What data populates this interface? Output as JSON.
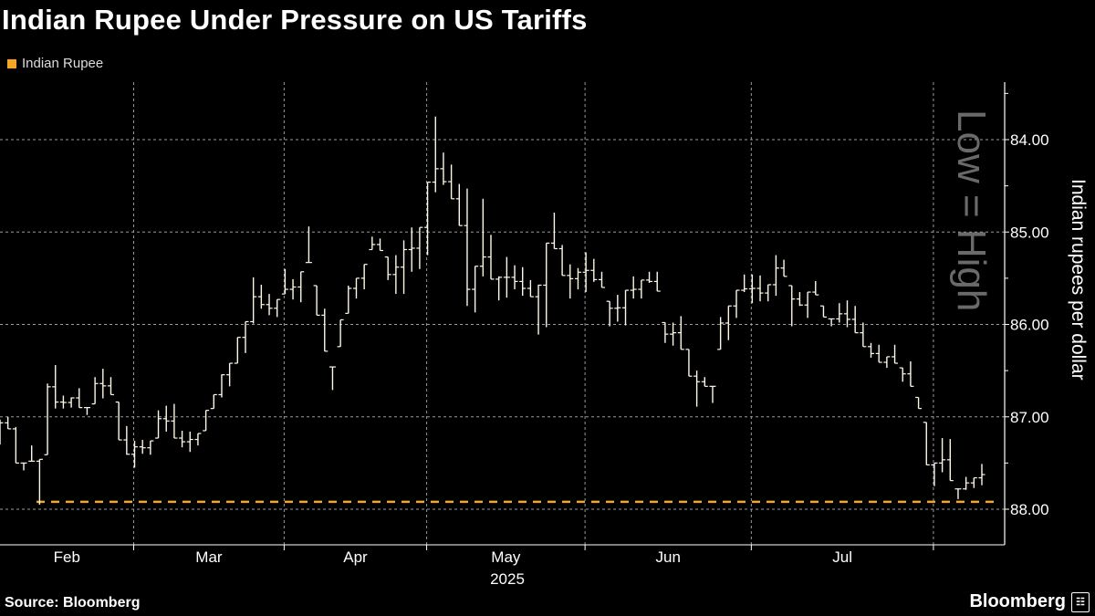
{
  "title": "Indian Rupee Under Pressure on US Tariffs",
  "source": "Source: Bloomberg",
  "brand": "Bloomberg",
  "colors": {
    "series": "#ffffff",
    "reference_line": "#f5a623",
    "legend": "#f5a623",
    "background": "#000000",
    "watermark": "#6a6a6a"
  },
  "chart_data": {
    "type": "ohlc-bar",
    "title": "Indian Rupee Under Pressure on US Tariffs",
    "legend": [
      {
        "name": "Indian Rupee",
        "color": "#f5a623"
      }
    ],
    "legend_position": "top-left",
    "ylabel": "Indian rupees per dollar",
    "y_note": "Low = High",
    "y_inverted": true,
    "ylim": [
      83.4,
      88.4
    ],
    "yticks": [
      "84.00",
      "85.00",
      "86.00",
      "87.00",
      "88.00"
    ],
    "ytick_values": [
      84,
      85,
      86,
      87,
      88
    ],
    "xlabel": "2025",
    "xticks": [
      "Feb",
      "Mar",
      "Apr",
      "May",
      "Jun",
      "Jul"
    ],
    "grid": true,
    "reference_line": 87.92,
    "bar_fields": [
      "date",
      "low",
      "high"
    ],
    "bars": [
      [
        "2025-02-06",
        87.03,
        87.3
      ],
      [
        "2025-02-07",
        87.0,
        87.13
      ],
      [
        "2025-02-10",
        87.11,
        87.5
      ],
      [
        "2025-02-11",
        87.5,
        87.58
      ],
      [
        "2025-02-12",
        87.31,
        87.48
      ],
      [
        "2025-02-13",
        87.46,
        87.95
      ],
      [
        "2025-02-14",
        86.64,
        87.41
      ],
      [
        "2025-02-17",
        86.44,
        86.91
      ],
      [
        "2025-02-18",
        86.77,
        86.91
      ],
      [
        "2025-02-19",
        86.79,
        86.9
      ],
      [
        "2025-02-20",
        86.69,
        86.9
      ],
      [
        "2025-02-21",
        86.9,
        86.98
      ],
      [
        "2025-02-24",
        86.57,
        86.86
      ],
      [
        "2025-02-25",
        86.48,
        86.8
      ],
      [
        "2025-02-26",
        86.57,
        86.76
      ],
      [
        "2025-02-27",
        86.84,
        87.25
      ],
      [
        "2025-02-28",
        87.1,
        87.41
      ],
      [
        "2025-03-03",
        87.26,
        87.55
      ],
      [
        "2025-03-04",
        87.25,
        87.4
      ],
      [
        "2025-03-05",
        87.26,
        87.41
      ],
      [
        "2025-03-06",
        86.93,
        87.23
      ],
      [
        "2025-03-07",
        86.88,
        87.16
      ],
      [
        "2025-03-10",
        86.86,
        87.23
      ],
      [
        "2025-03-11",
        87.15,
        87.33
      ],
      [
        "2025-03-12",
        87.16,
        87.38
      ],
      [
        "2025-03-13",
        87.18,
        87.31
      ],
      [
        "2025-03-17",
        86.93,
        87.15
      ],
      [
        "2025-03-18",
        86.76,
        86.91
      ],
      [
        "2025-03-19",
        86.54,
        86.79
      ],
      [
        "2025-03-20",
        86.42,
        86.67
      ],
      [
        "2025-03-21",
        86.14,
        86.42
      ],
      [
        "2025-03-24",
        85.97,
        86.31
      ],
      [
        "2025-03-25",
        85.49,
        85.99
      ],
      [
        "2025-03-26",
        85.57,
        85.83
      ],
      [
        "2025-03-27",
        85.67,
        85.9
      ],
      [
        "2025-03-28",
        85.73,
        85.92
      ],
      [
        "2025-04-02",
        85.4,
        85.67
      ],
      [
        "2025-04-03",
        85.51,
        85.73
      ],
      [
        "2025-04-04",
        85.43,
        85.76
      ],
      [
        "2025-04-07",
        84.94,
        85.33
      ],
      [
        "2025-04-08",
        85.58,
        85.9
      ],
      [
        "2025-04-09",
        85.83,
        86.29
      ],
      [
        "2025-04-11",
        86.46,
        86.71
      ],
      [
        "2025-04-15",
        85.95,
        86.24
      ],
      [
        "2025-04-16",
        85.58,
        85.88
      ],
      [
        "2025-04-17",
        85.5,
        85.72
      ],
      [
        "2025-04-21",
        85.35,
        85.62
      ],
      [
        "2025-04-22",
        85.05,
        85.19
      ],
      [
        "2025-04-23",
        85.07,
        85.2
      ],
      [
        "2025-04-24",
        85.27,
        85.52
      ],
      [
        "2025-04-25",
        85.25,
        85.67
      ],
      [
        "2025-04-28",
        85.09,
        85.67
      ],
      [
        "2025-04-29",
        84.95,
        85.43
      ],
      [
        "2025-04-30",
        84.95,
        85.4
      ],
      [
        "2025-05-02",
        84.46,
        85.25
      ],
      [
        "2025-05-05",
        83.75,
        84.57
      ],
      [
        "2025-05-06",
        84.14,
        84.49
      ],
      [
        "2025-05-07",
        84.27,
        84.64
      ],
      [
        "2025-05-08",
        84.48,
        84.93
      ],
      [
        "2025-05-09",
        84.53,
        85.8
      ],
      [
        "2025-05-13",
        85.37,
        85.87
      ],
      [
        "2025-05-14",
        84.64,
        85.48
      ],
      [
        "2025-05-15",
        85.03,
        85.51
      ],
      [
        "2025-05-16",
        85.48,
        85.74
      ],
      [
        "2025-05-19",
        85.27,
        85.71
      ],
      [
        "2025-05-20",
        85.36,
        85.62
      ],
      [
        "2025-05-21",
        85.38,
        85.69
      ],
      [
        "2025-05-22",
        85.52,
        85.7
      ],
      [
        "2025-05-23",
        85.57,
        86.11
      ],
      [
        "2025-05-26",
        85.12,
        86.03
      ],
      [
        "2025-05-27",
        84.79,
        85.18
      ],
      [
        "2025-05-28",
        85.14,
        85.47
      ],
      [
        "2025-05-29",
        85.35,
        85.72
      ],
      [
        "2025-05-30",
        85.39,
        85.62
      ],
      [
        "2025-06-02",
        85.22,
        85.65
      ],
      [
        "2025-06-03",
        85.29,
        85.54
      ],
      [
        "2025-06-04",
        85.43,
        85.6
      ],
      [
        "2025-06-05",
        85.75,
        86.02
      ],
      [
        "2025-06-06",
        85.68,
        85.97
      ],
      [
        "2025-06-09",
        85.63,
        86.01
      ],
      [
        "2025-06-10",
        85.48,
        85.72
      ],
      [
        "2025-06-11",
        85.52,
        85.72
      ],
      [
        "2025-06-12",
        85.43,
        85.55
      ],
      [
        "2025-06-13",
        85.43,
        85.64
      ],
      [
        "2025-06-16",
        85.98,
        86.2
      ],
      [
        "2025-06-17",
        85.98,
        86.23
      ],
      [
        "2025-06-18",
        85.91,
        86.27
      ],
      [
        "2025-06-19",
        86.27,
        86.56
      ],
      [
        "2025-06-20",
        86.5,
        86.89
      ],
      [
        "2025-06-23",
        86.57,
        86.67
      ],
      [
        "2025-06-24",
        86.67,
        86.85
      ],
      [
        "2025-06-25",
        85.92,
        86.27
      ],
      [
        "2025-06-26",
        85.8,
        86.17
      ],
      [
        "2025-06-27",
        85.63,
        85.93
      ],
      [
        "2025-06-30",
        85.46,
        85.65
      ],
      [
        "2025-07-01",
        85.46,
        85.77
      ],
      [
        "2025-07-02",
        85.47,
        85.75
      ],
      [
        "2025-07-03",
        85.57,
        85.75
      ],
      [
        "2025-07-04",
        85.25,
        85.69
      ],
      [
        "2025-07-07",
        85.3,
        85.48
      ],
      [
        "2025-07-08",
        85.58,
        86.02
      ],
      [
        "2025-07-09",
        85.65,
        85.8
      ],
      [
        "2025-07-10",
        85.65,
        85.93
      ],
      [
        "2025-07-11",
        85.53,
        85.68
      ],
      [
        "2025-07-14",
        85.8,
        85.92
      ],
      [
        "2025-07-15",
        85.94,
        86.02
      ],
      [
        "2025-07-16",
        85.77,
        85.98
      ],
      [
        "2025-07-17",
        85.74,
        86.03
      ],
      [
        "2025-07-18",
        85.8,
        86.09
      ],
      [
        "2025-07-21",
        85.98,
        86.24
      ],
      [
        "2025-07-22",
        86.2,
        86.36
      ],
      [
        "2025-07-23",
        86.22,
        86.41
      ],
      [
        "2025-07-24",
        86.35,
        86.47
      ],
      [
        "2025-07-25",
        86.22,
        86.42
      ],
      [
        "2025-07-28",
        86.47,
        86.62
      ],
      [
        "2025-07-29",
        86.4,
        86.67
      ],
      [
        "2025-07-30",
        86.79,
        86.91
      ],
      [
        "2025-07-31",
        87.06,
        87.52
      ],
      [
        "2025-08-01",
        87.5,
        87.75
      ],
      [
        "2025-08-04",
        87.23,
        87.6
      ],
      [
        "2025-08-05",
        87.24,
        87.69
      ],
      [
        "2025-08-06",
        87.78,
        87.89
      ],
      [
        "2025-08-07",
        87.65,
        87.79
      ],
      [
        "2025-08-08",
        87.66,
        87.77
      ],
      [
        "2025-08-11",
        87.51,
        87.74
      ]
    ]
  }
}
